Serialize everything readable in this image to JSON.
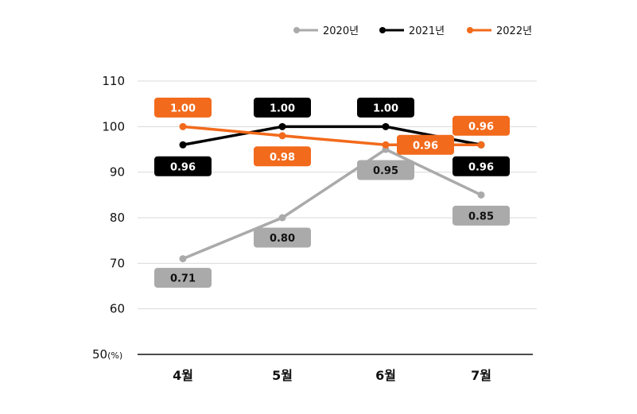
{
  "chart_data": {
    "type": "line",
    "categories": [
      "4월",
      "5월",
      "6월",
      "7월"
    ],
    "series": [
      {
        "name": "2020년",
        "color": "#aaaaaa",
        "text_color": "#111111",
        "values": [
          0.71,
          0.8,
          0.95,
          0.85
        ]
      },
      {
        "name": "2021년",
        "color": "#000000",
        "text_color": "#ffffff",
        "values": [
          0.96,
          1.0,
          1.0,
          0.96
        ]
      },
      {
        "name": "2022년",
        "color": "#f26a1b",
        "text_color": "#ffffff",
        "values": [
          1.0,
          0.98,
          0.96,
          0.96
        ]
      }
    ],
    "data_labels": [
      [
        "0.71",
        "0.80",
        "0.95",
        "0.85"
      ],
      [
        "0.96",
        "1.00",
        "1.00",
        "0.96"
      ],
      [
        "1.00",
        "0.98",
        "0.96",
        "0.96"
      ]
    ],
    "y_ticks": [
      "110",
      "100",
      "90",
      "80",
      "70",
      "60"
    ],
    "y_base_label": "50",
    "y_unit": "(%)",
    "ylim": [
      50,
      110
    ],
    "grid": true,
    "legend_position": "top-right"
  }
}
